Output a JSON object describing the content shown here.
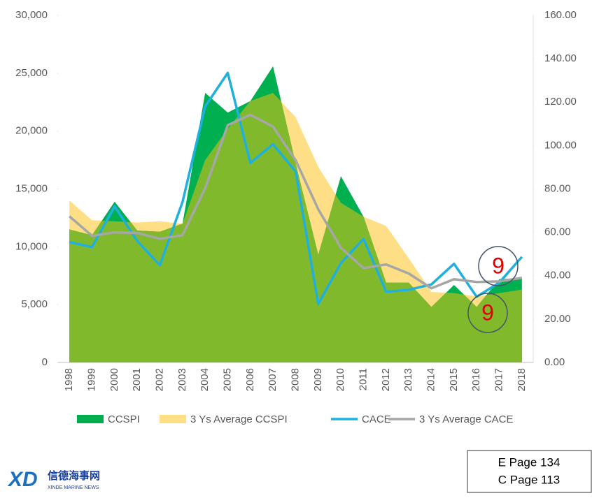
{
  "chart_data": {
    "type": "area",
    "categories": [
      "1998",
      "1999",
      "2000",
      "2001",
      "2002",
      "2003",
      "2004",
      "2005",
      "2006",
      "2007",
      "2008",
      "2009",
      "2010",
      "2011",
      "2012",
      "2013",
      "2014",
      "2015",
      "2016",
      "2017",
      "2018"
    ],
    "series": [
      {
        "name": "CCSPI",
        "type": "area",
        "color": "#00b050",
        "values": [
          11500,
          11000,
          13900,
          11400,
          11300,
          12000,
          23300,
          21600,
          22600,
          25600,
          17200,
          9300,
          16100,
          12600,
          6900,
          6900,
          4800,
          6700,
          4800,
          7200,
          7300
        ]
      },
      {
        "name": "3 Ys Average CCSPI",
        "type": "area",
        "color": "#ffdf85",
        "values": [
          14000,
          12300,
          12200,
          12100,
          12200,
          12000,
          17500,
          20200,
          22600,
          23300,
          21200,
          16900,
          13800,
          12600,
          11800,
          9000,
          6100,
          6000,
          5700,
          6000,
          6300
        ]
      },
      {
        "name": "CACE",
        "type": "line",
        "axis": "y2",
        "color": "#1fb0e0",
        "values": [
          55.5,
          53.2,
          72,
          56,
          44.8,
          74,
          118,
          133.5,
          92,
          100.6,
          88,
          27,
          45.8,
          57,
          32.6,
          33.5,
          36,
          45.5,
          30.3,
          36.8,
          48.7
        ]
      },
      {
        "name": "3 Ys Average CACE",
        "type": "line",
        "axis": "y2",
        "color": "#a6a6a6",
        "values": [
          67.4,
          58.4,
          60,
          59.7,
          57,
          58.7,
          80.3,
          109.4,
          114.2,
          108.7,
          93.2,
          70.6,
          52.9,
          43.5,
          45.2,
          41,
          34.2,
          38.4,
          37.1,
          37.4,
          39
        ]
      }
    ],
    "overlap_color": "#80ba2c",
    "ylim": [
      0,
      30000
    ],
    "yticks": [
      0,
      {
        "value": 5000,
        "label": "5,000"
      },
      {
        "value": 10000,
        "label": "10,000"
      },
      {
        "value": 15000,
        "label": "15,000"
      },
      {
        "value": 20000,
        "label": "20,000"
      },
      {
        "value": 25000,
        "label": "25,000"
      },
      {
        "value": 30000,
        "label": "30,000"
      }
    ],
    "y2lim": [
      0,
      160
    ],
    "y2ticks": [
      {
        "value": 0,
        "label": "0.00"
      },
      {
        "value": 20,
        "label": "20.00"
      },
      {
        "value": 40,
        "label": "40.00"
      },
      {
        "value": 60,
        "label": "60.00"
      },
      {
        "value": 80,
        "label": "80.00"
      },
      {
        "value": 100,
        "label": "100.00"
      },
      {
        "value": 120,
        "label": "120.00"
      },
      {
        "value": 140,
        "label": "140.00"
      },
      {
        "value": 160,
        "label": "160.00"
      }
    ],
    "grid": false,
    "legend": "bottom",
    "annotations": [
      "9",
      "9"
    ]
  },
  "page_box": [
    "E Page 134",
    "C Page 113"
  ],
  "logo": {
    "mark": "XD",
    "name": "信德海事网",
    "subtitle": "XINDE MARINE NEWS"
  }
}
